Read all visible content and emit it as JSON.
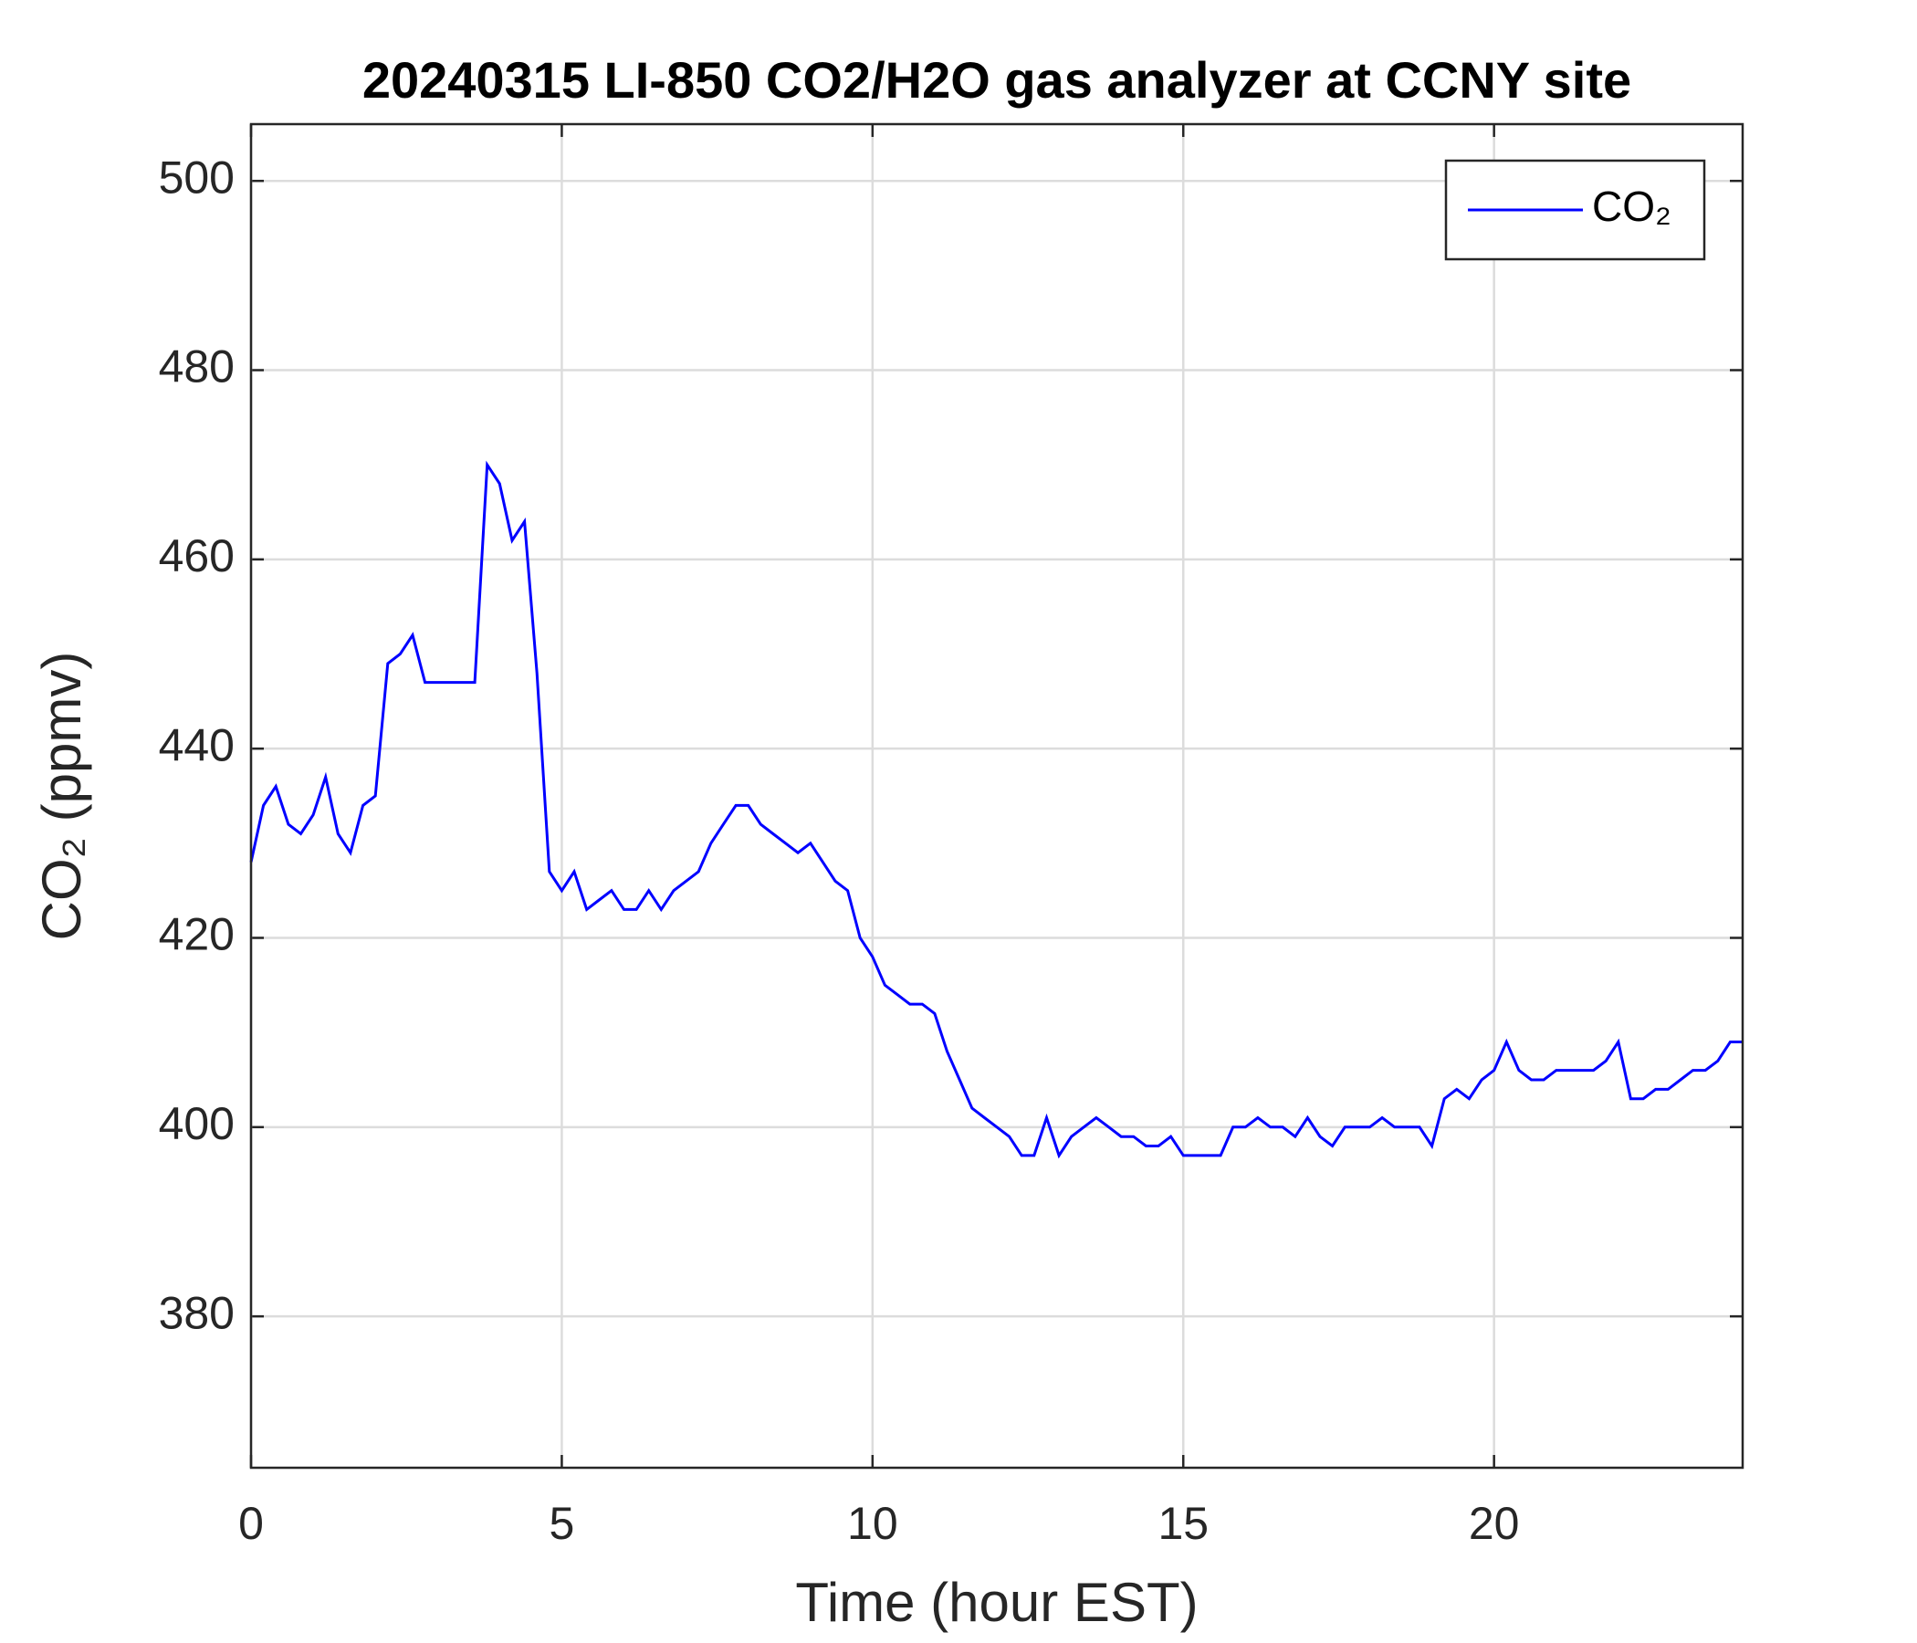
{
  "chart_data": {
    "type": "line",
    "title": "20240315 LI-850 CO2/H2O gas analyzer at CCNY site",
    "x_label": "Time (hour EST)",
    "y_label": "CO₂ (ppmv)",
    "xlim": [
      0,
      24
    ],
    "ylim": [
      364,
      506
    ],
    "xticks": [
      0,
      5,
      10,
      15,
      20
    ],
    "yticks": [
      380,
      400,
      420,
      440,
      460,
      480,
      500
    ],
    "grid": true,
    "legend": "upper right",
    "x": [
      0,
      0.2,
      0.4,
      0.6,
      0.8,
      1,
      1.2,
      1.4,
      1.6,
      1.8,
      2,
      2.2,
      2.4,
      2.6,
      2.8,
      3,
      3.2,
      3.4,
      3.6,
      3.8,
      4,
      4.2,
      4.4,
      4.6,
      4.8,
      5,
      5.2,
      5.4,
      5.6,
      5.8,
      6,
      6.2,
      6.4,
      6.6,
      6.8,
      7,
      7.2,
      7.4,
      7.6,
      7.8,
      8,
      8.2,
      8.4,
      8.6,
      8.8,
      9,
      9.2,
      9.4,
      9.6,
      9.8,
      10,
      10.2,
      10.4,
      10.6,
      10.8,
      11,
      11.2,
      11.4,
      11.6,
      11.8,
      12,
      12.2,
      12.4,
      12.6,
      12.8,
      13,
      13.2,
      13.4,
      13.6,
      13.8,
      14,
      14.2,
      14.4,
      14.6,
      14.8,
      15,
      15.2,
      15.4,
      15.6,
      15.8,
      16,
      16.2,
      16.4,
      16.6,
      16.8,
      17,
      17.2,
      17.4,
      17.6,
      17.8,
      18,
      18.2,
      18.4,
      18.6,
      18.8,
      19,
      19.2,
      19.4,
      19.6,
      19.8,
      20,
      20.2,
      20.4,
      20.6,
      20.8,
      21,
      21.2,
      21.4,
      21.6,
      21.8,
      22,
      22.2,
      22.4,
      22.6,
      22.8,
      23,
      23.2,
      23.4,
      23.6,
      23.8,
      24
    ],
    "series": [
      {
        "name": "CO₂",
        "color": "#0000ff",
        "values": [
          428,
          434,
          436,
          432,
          431,
          433,
          437,
          431,
          429,
          434,
          435,
          449,
          450,
          452,
          447,
          447,
          447,
          447,
          447,
          470,
          468,
          462,
          464,
          448,
          427,
          425,
          427,
          423,
          424,
          425,
          423,
          423,
          425,
          423,
          425,
          426,
          427,
          430,
          432,
          434,
          434,
          432,
          431,
          430,
          429,
          430,
          428,
          426,
          425,
          420,
          418,
          415,
          414,
          413,
          413,
          412,
          408,
          405,
          402,
          401,
          400,
          399,
          397,
          397,
          401,
          397,
          399,
          400,
          401,
          400,
          399,
          399,
          398,
          398,
          399,
          397,
          397,
          397,
          397,
          400,
          400,
          401,
          400,
          400,
          399,
          401,
          399,
          398,
          400,
          400,
          400,
          401,
          400,
          400,
          400,
          398,
          403,
          404,
          403,
          405,
          406,
          409,
          406,
          405,
          405,
          406,
          406,
          406,
          406,
          407,
          409,
          403,
          403,
          404,
          404,
          405,
          406,
          406,
          407,
          409,
          409
        ]
      }
    ]
  }
}
